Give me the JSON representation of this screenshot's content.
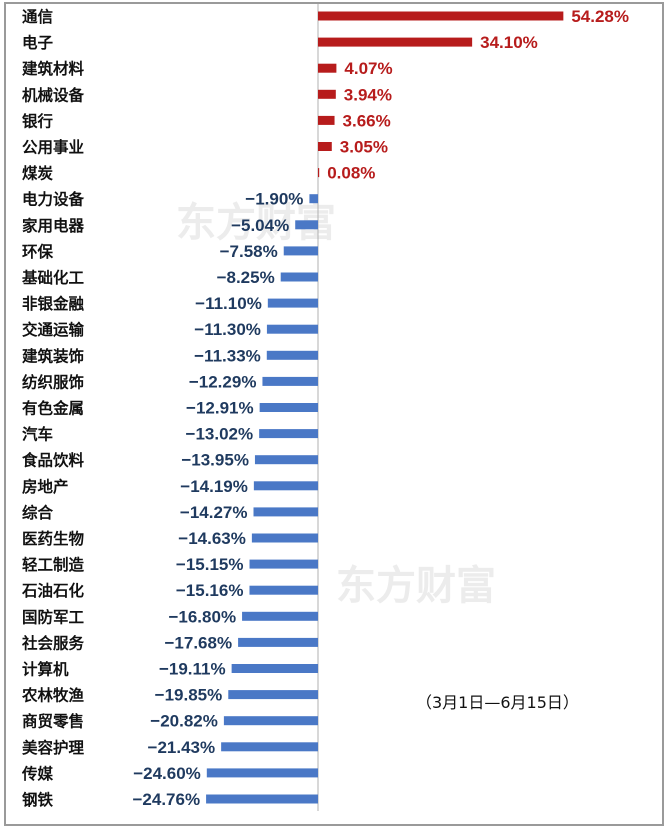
{
  "chart_data": {
    "type": "bar",
    "orientation": "horizontal",
    "categories": [
      "通信",
      "电子",
      "建筑材料",
      "机械设备",
      "银行",
      "公用事业",
      "煤炭",
      "电力设备",
      "家用电器",
      "环保",
      "基础化工",
      "非银金融",
      "交通运输",
      "建筑装饰",
      "纺织服饰",
      "有色金属",
      "汽车",
      "食品饮料",
      "房地产",
      "综合",
      "医药生物",
      "轻工制造",
      "石油石化",
      "国防军工",
      "社会服务",
      "计算机",
      "农林牧渔",
      "商贸零售",
      "美容护理",
      "传媒",
      "钢铁"
    ],
    "values": [
      54.28,
      34.1,
      4.07,
      3.94,
      3.66,
      3.05,
      0.08,
      -1.9,
      -5.04,
      -7.58,
      -8.25,
      -11.1,
      -11.3,
      -11.33,
      -12.29,
      -12.91,
      -13.02,
      -13.95,
      -14.19,
      -14.27,
      -14.63,
      -15.15,
      -15.16,
      -16.8,
      -17.68,
      -19.11,
      -19.85,
      -20.82,
      -21.43,
      -24.6,
      -24.76
    ],
    "value_labels": [
      "54.28%",
      "34.10%",
      "4.07%",
      "3.94%",
      "3.66%",
      "3.05%",
      "0.08%",
      "−1.90%",
      "−5.04%",
      "−7.58%",
      "−8.25%",
      "−11.10%",
      "−11.30%",
      "−11.33%",
      "−12.29%",
      "−12.91%",
      "−13.02%",
      "−13.95%",
      "−14.19%",
      "−14.27%",
      "−14.63%",
      "−15.15%",
      "−15.16%",
      "−16.80%",
      "−17.68%",
      "−19.11%",
      "−19.85%",
      "−20.82%",
      "−21.43%",
      "−24.60%",
      "−24.76%"
    ],
    "annotation": "（3月1日—6月15日）",
    "colors": {
      "positive": "#b71c1c",
      "negative": "#4a78c6"
    }
  }
}
